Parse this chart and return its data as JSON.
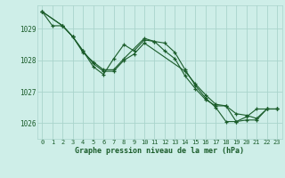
{
  "title": "Graphe pression niveau de la mer (hPa)",
  "background_color": "#ceeee8",
  "grid_color": "#aad4cc",
  "line_color": "#1a5c2a",
  "ylim": [
    1025.5,
    1029.75
  ],
  "xlim": [
    -0.5,
    23.5
  ],
  "yticks": [
    1026,
    1027,
    1028,
    1029
  ],
  "xticks": [
    0,
    1,
    2,
    3,
    4,
    5,
    6,
    7,
    8,
    9,
    10,
    11,
    12,
    13,
    14,
    15,
    16,
    17,
    18,
    19,
    20,
    21,
    22,
    23
  ],
  "series1": {
    "x": [
      0,
      1,
      2,
      3,
      4,
      5,
      6,
      7,
      8,
      10,
      11,
      12,
      13,
      14,
      15,
      16,
      17,
      18,
      19,
      20,
      21,
      22,
      23
    ],
    "y": [
      1029.55,
      1029.1,
      1029.1,
      1028.75,
      1028.25,
      1027.95,
      1027.7,
      1027.7,
      1028.05,
      1028.7,
      1028.6,
      1028.55,
      1028.25,
      1027.7,
      1027.2,
      1026.8,
      1026.5,
      1026.05,
      1026.05,
      1026.1,
      1026.1,
      1026.45,
      1026.45
    ]
  },
  "series2": {
    "x": [
      0,
      2,
      3,
      4,
      5,
      6,
      7,
      8,
      9,
      10,
      11,
      12,
      13,
      14,
      15,
      16,
      17,
      18,
      19,
      20,
      21,
      22,
      23
    ],
    "y": [
      1029.55,
      1029.1,
      1028.75,
      1028.3,
      1027.8,
      1027.55,
      1028.05,
      1028.5,
      1028.3,
      1028.65,
      1028.6,
      1028.3,
      1028.05,
      1027.5,
      1027.1,
      1026.75,
      1026.55,
      1026.55,
      1026.3,
      1026.25,
      1026.15,
      1026.45,
      1026.45
    ]
  },
  "series3": {
    "x": [
      0,
      2,
      3,
      4,
      5,
      6,
      7,
      8,
      9,
      10,
      14,
      15,
      16,
      17,
      18,
      19,
      20,
      21,
      22,
      23
    ],
    "y": [
      1029.55,
      1029.1,
      1028.75,
      1028.3,
      1027.9,
      1027.65,
      1027.65,
      1028.0,
      1028.2,
      1028.55,
      1027.65,
      1027.25,
      1026.9,
      1026.6,
      1026.55,
      1026.05,
      1026.2,
      1026.45,
      1026.45,
      1026.45
    ]
  }
}
